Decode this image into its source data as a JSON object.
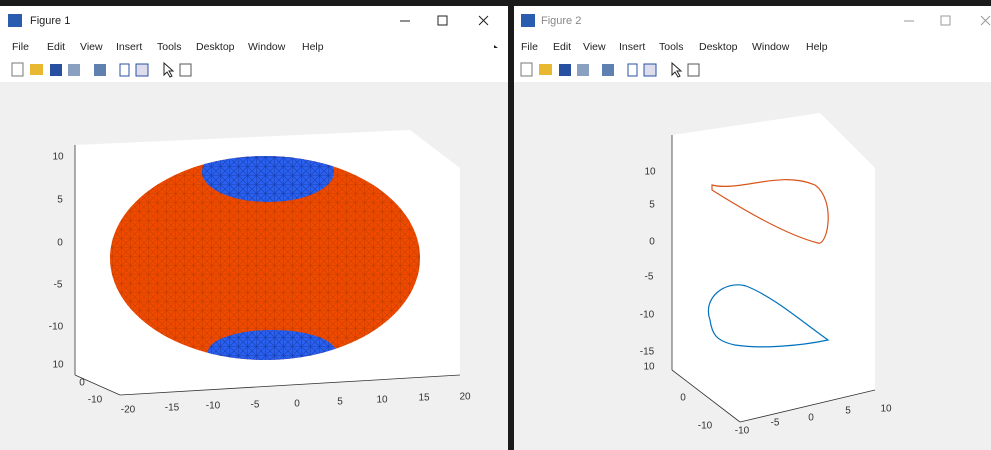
{
  "windows": [
    {
      "title": "Figure 1",
      "menu": [
        "File",
        "Edit",
        "View",
        "Insert",
        "Tools",
        "Desktop",
        "Window",
        "Help"
      ],
      "axes": {
        "z_ticks": [
          "10",
          "5",
          "0",
          "-5",
          "-10"
        ],
        "y_ticks": [
          "10",
          "0",
          "-10"
        ],
        "x_ticks": [
          "-20",
          "-15",
          "-10",
          "-5",
          "0",
          "5",
          "10",
          "15",
          "20"
        ]
      }
    },
    {
      "title": "Figure 2",
      "menu": [
        "File",
        "Edit",
        "View",
        "Insert",
        "Tools",
        "Desktop",
        "Window",
        "Help"
      ],
      "axes": {
        "z_ticks": [
          "10",
          "5",
          "0",
          "-5",
          "-10",
          "-15"
        ],
        "y_ticks": [
          "10",
          "0",
          "-10"
        ],
        "x_ticks": [
          "-10",
          "-5",
          "0",
          "5",
          "10"
        ]
      }
    }
  ]
}
